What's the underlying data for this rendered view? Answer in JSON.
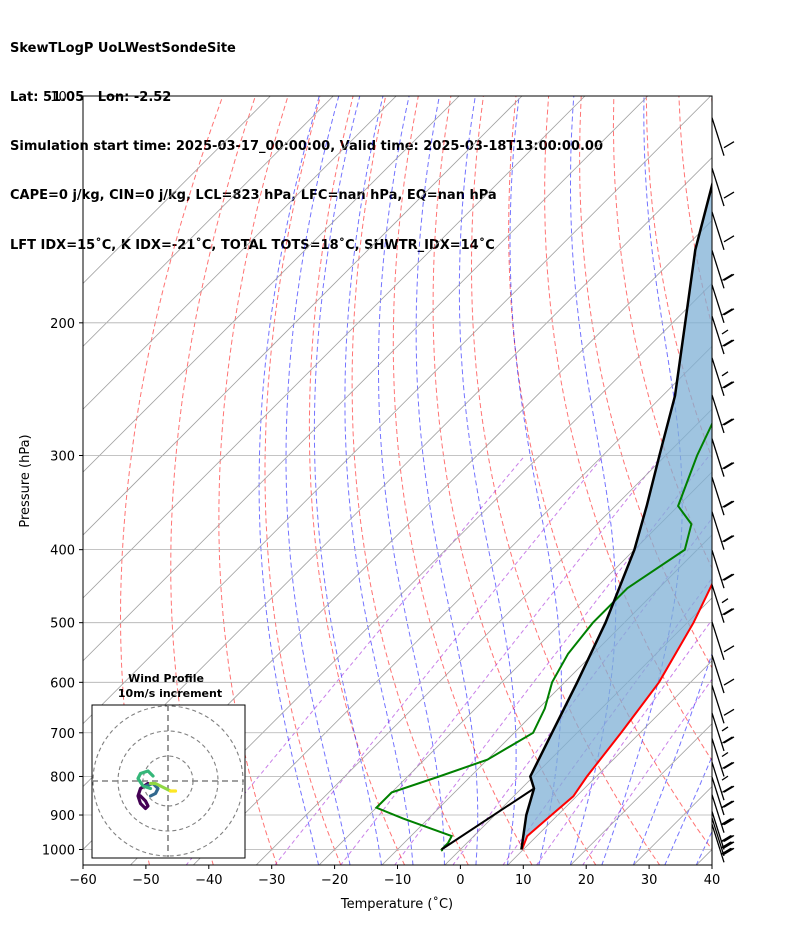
{
  "title": {
    "line1": "SkewTLogP UoLWestSondeSite",
    "line2": "Lat: 51.05   Lon: -2.52",
    "line3": "Simulation start time: 2025-03-17_00:00:00, Valid time: 2025-03-18T13:00:00.00",
    "line4": "CAPE=0 j/kg, CIN=0 j/kg, LCL=823 hPa, LFC=nan hPa, EQ=nan hPa",
    "line5": "LFT IDX=15˚C, K IDX=-21˚C, TOTAL TOTS=18˚C, SHWTR_IDX=14˚C"
  },
  "chart_data": {
    "type": "line",
    "subtype": "skew-T log-P diagram",
    "xlabel": "Temperature (˚C)",
    "ylabel": "Pressure (hPa)",
    "xlim": [
      -60,
      40
    ],
    "ylim": [
      1050,
      100
    ],
    "y_scale": "log",
    "grid": true,
    "x_ticks": [
      "−60",
      "−50",
      "−40",
      "−30",
      "−20",
      "−10",
      "0",
      "10",
      "20",
      "30",
      "40"
    ],
    "y_ticks": [
      "100",
      "200",
      "300",
      "400",
      "500",
      "600",
      "700",
      "800",
      "900",
      "1000"
    ],
    "series": [
      {
        "role": "temperature",
        "color": "#ff0000",
        "points": [
          [
            9.8,
            1000
          ],
          [
            8.5,
            960
          ],
          [
            9,
            900
          ],
          [
            9.5,
            850
          ],
          [
            8.5,
            800
          ],
          [
            7,
            700
          ],
          [
            5,
            600
          ],
          [
            1,
            500
          ],
          [
            -5,
            400
          ],
          [
            -10,
            350
          ],
          [
            -14,
            300
          ],
          [
            -16,
            250
          ],
          [
            -16,
            220
          ],
          [
            -10,
            180
          ],
          [
            -5,
            160
          ],
          [
            0,
            140
          ],
          [
            4,
            125
          ],
          [
            6,
            115
          ],
          [
            8,
            100
          ]
        ]
      },
      {
        "role": "dewpoint",
        "color": "#008000",
        "points": [
          [
            -2.6,
            1005
          ],
          [
            -3,
            1000
          ],
          [
            -3,
            980
          ],
          [
            -3.5,
            960
          ],
          [
            -14,
            910
          ],
          [
            -20,
            880
          ],
          [
            -20,
            840
          ],
          [
            -15,
            800
          ],
          [
            -10,
            760
          ],
          [
            -7,
            700
          ],
          [
            -9,
            650
          ],
          [
            -12,
            600
          ],
          [
            -14,
            550
          ],
          [
            -15,
            500
          ],
          [
            -15,
            450
          ],
          [
            -12,
            400
          ],
          [
            -15,
            370
          ],
          [
            -20,
            350
          ],
          [
            -25,
            300
          ],
          [
            -30,
            250
          ],
          [
            -29,
            220
          ],
          [
            -27,
            200
          ],
          [
            -28,
            180
          ],
          [
            -32,
            160
          ],
          [
            -31,
            140
          ],
          [
            -27,
            125
          ],
          [
            -23,
            115
          ],
          [
            -19,
            100
          ]
        ]
      },
      {
        "role": "parcel",
        "color": "#000000",
        "points": [
          [
            9.7,
            1000
          ],
          [
            5,
            900
          ],
          [
            2,
            830
          ],
          [
            -0.5,
            800
          ],
          [
            -4,
            700
          ],
          [
            -8,
            600
          ],
          [
            -13,
            500
          ],
          [
            -20,
            400
          ],
          [
            -25,
            350
          ],
          [
            -31,
            300
          ],
          [
            -38,
            250
          ],
          [
            -48,
            200
          ],
          [
            -58,
            160
          ],
          [
            -66,
            130
          ],
          [
            -74,
            100
          ]
        ]
      },
      {
        "role": "surface dewpoint to LCL",
        "color": "#000000",
        "points": [
          [
            -3,
            1000
          ],
          [
            2,
            830
          ]
        ]
      }
    ],
    "background_lines": [
      "dry adiabats (red dashed)",
      "moist adiabats (blue dashed)",
      "mixing ratio lines (purple dashed)",
      "isotherms (grey)"
    ],
    "shading": "between temperature and parcel profile",
    "wind_barbs": {
      "pressures": [
        120,
        140,
        160,
        180,
        200,
        220,
        250,
        280,
        320,
        360,
        400,
        450,
        500,
        560,
        620,
        680,
        740,
        800,
        860,
        900,
        950,
        1000,
        1020,
        1040
      ],
      "speeds_kt": [
        10,
        10,
        10,
        20,
        20,
        15,
        15,
        20,
        20,
        20,
        20,
        20,
        15,
        10,
        10,
        10,
        15,
        15,
        15,
        20,
        25,
        25,
        30,
        30
      ]
    },
    "hodograph": {
      "title": "Wind Profile",
      "subtitle": "10m/s increment",
      "rings_ms": [
        10,
        20,
        30
      ],
      "series": [
        {
          "color": "#440154",
          "u": [
            -8,
            -11,
            -12,
            -11,
            -9,
            -8,
            -9,
            -11
          ]
        },
        {
          "color": "#31688e",
          "u": [
            -9,
            -6,
            -4,
            -5,
            -7
          ]
        },
        {
          "color": "#35b779",
          "u": [
            -7,
            -10,
            -12,
            -11,
            -8,
            -6
          ]
        },
        {
          "color": "#90d743",
          "u": [
            -7,
            -5,
            -3,
            -1,
            1
          ]
        },
        {
          "color": "#fde725",
          "u": [
            1,
            3
          ]
        }
      ]
    },
    "hodograph_v": [
      [
        -1,
        -3,
        -6,
        -9,
        -11,
        -10,
        -8,
        -6
      ],
      [
        -2,
        -1,
        -3,
        -5,
        -6
      ],
      [
        -3,
        -2,
        1,
        3,
        4,
        2
      ],
      [
        -1,
        -1,
        -2,
        -3,
        -4
      ],
      [
        -4,
        -4
      ]
    ]
  }
}
